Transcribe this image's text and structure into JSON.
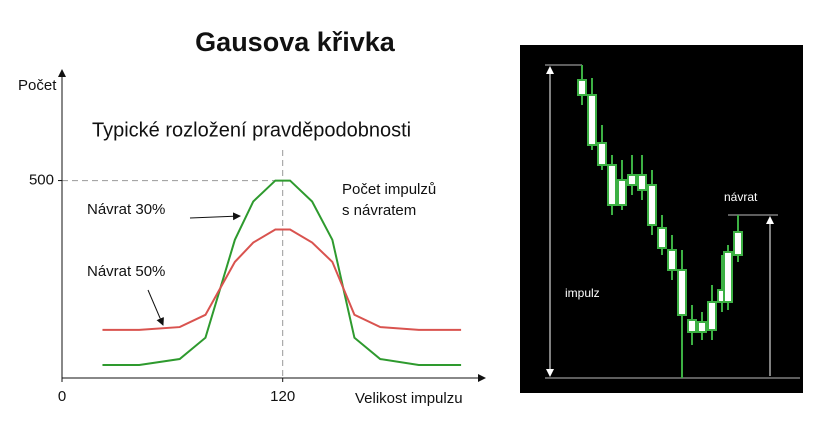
{
  "chart_data": {
    "type": "line",
    "title": "Gausova křivka",
    "subtitle": "Typické rozložení pravděpodobnosti",
    "y_label": "Počet",
    "x_label": "Velikost impulzu",
    "annotation": [
      "Počet impulzů",
      "s návratem"
    ],
    "x": [
      22,
      42,
      64,
      78,
      94,
      104,
      116,
      124,
      136,
      147,
      159,
      173,
      194,
      217
    ],
    "series": [
      {
        "name": "Návrat 30%",
        "color": "#2e9a2e",
        "values": [
          33,
          33,
          48,
          102,
          350,
          447,
          500,
          500,
          447,
          350,
          102,
          48,
          33,
          33
        ]
      },
      {
        "name": "Návrat 50%",
        "color": "#d9534f",
        "values": [
          122,
          122,
          129,
          160,
          294,
          343,
          376,
          376,
          343,
          294,
          160,
          129,
          122,
          122
        ]
      }
    ],
    "xlim": [
      0,
      230
    ],
    "ylim": [
      0,
      780
    ],
    "xticks": [
      0,
      120
    ],
    "yticks": [
      500
    ],
    "grid": false,
    "illustration": {
      "labels": [
        "impulz",
        "návrat"
      ]
    }
  }
}
